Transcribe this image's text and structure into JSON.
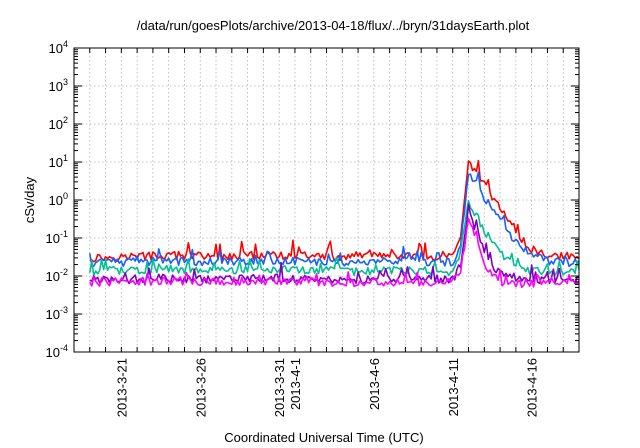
{
  "chart_data": {
    "type": "line",
    "title": "/data/run/goesPlots/archive/2013-04-18/flux/../bryn/31daysEarth.plot",
    "xlabel": "Coordinated Universal Time (UTC)",
    "ylabel": "cSv/day",
    "yscale": "log",
    "ylim": [
      0.0001,
      10000
    ],
    "xlim": [
      "2013-03-18",
      "2013-04-19"
    ],
    "grid": true,
    "legend": "none",
    "yticks": [
      {
        "value": 0.0001,
        "base": "10",
        "exp": "-4"
      },
      {
        "value": 0.001,
        "base": "10",
        "exp": "-3"
      },
      {
        "value": 0.01,
        "base": "10",
        "exp": "-2"
      },
      {
        "value": 0.1,
        "base": "10",
        "exp": "-1"
      },
      {
        "value": 1,
        "base": "10",
        "exp": "0"
      },
      {
        "value": 10,
        "base": "10",
        "exp": "1"
      },
      {
        "value": 100,
        "base": "10",
        "exp": "2"
      },
      {
        "value": 1000,
        "base": "10",
        "exp": "3"
      },
      {
        "value": 10000,
        "base": "10",
        "exp": "4"
      }
    ],
    "xticks": [
      {
        "date": "2013-03-21",
        "label": "2013-3-21"
      },
      {
        "date": "2013-03-26",
        "label": "2013-3-26"
      },
      {
        "date": "2013-03-31",
        "label": "2013-3-31"
      },
      {
        "date": "2013-04-01",
        "label": "2013-4-1"
      },
      {
        "date": "2013-04-06",
        "label": "2013-4-6"
      },
      {
        "date": "2013-04-11",
        "label": "2013-4-11"
      },
      {
        "date": "2013-04-16",
        "label": "2013-4-16"
      }
    ],
    "series": [
      {
        "color": "#ff0000",
        "x": [
          "2013-03-19",
          "2013-03-21",
          "2013-03-24",
          "2013-03-27",
          "2013-03-30",
          "2013-04-02",
          "2013-04-05",
          "2013-04-08",
          "2013-04-11",
          "2013-04-11T12:00",
          "2013-04-12",
          "2013-04-12T12:00",
          "2013-04-13",
          "2013-04-13T12:00",
          "2013-04-14",
          "2013-04-14T12:00",
          "2013-04-15",
          "2013-04-16",
          "2013-04-17",
          "2013-04-18",
          "2013-04-19"
        ],
        "y": [
          0.03,
          0.032,
          0.035,
          0.033,
          0.036,
          0.033,
          0.032,
          0.034,
          0.03,
          0.1,
          8.5,
          6.0,
          2.5,
          1.2,
          0.6,
          0.35,
          0.15,
          0.05,
          0.035,
          0.032,
          0.03
        ]
      },
      {
        "color": "#1560ff",
        "x": [
          "2013-03-19",
          "2013-03-21",
          "2013-03-24",
          "2013-03-27",
          "2013-03-30",
          "2013-04-02",
          "2013-04-05",
          "2013-04-08",
          "2013-04-11",
          "2013-04-11T12:00",
          "2013-04-12",
          "2013-04-12T12:00",
          "2013-04-13",
          "2013-04-13T12:00",
          "2013-04-14",
          "2013-04-14T12:00",
          "2013-04-15",
          "2013-04-16",
          "2013-04-17",
          "2013-04-18",
          "2013-04-19"
        ],
        "y": [
          0.022,
          0.023,
          0.025,
          0.024,
          0.026,
          0.024,
          0.023,
          0.025,
          0.022,
          0.06,
          5.0,
          3.0,
          1.2,
          0.6,
          0.3,
          0.15,
          0.08,
          0.035,
          0.025,
          0.023,
          0.022
        ]
      },
      {
        "color": "#00c090",
        "x": [
          "2013-03-19",
          "2013-03-21",
          "2013-03-24",
          "2013-03-27",
          "2013-03-30",
          "2013-04-02",
          "2013-04-05",
          "2013-04-08",
          "2013-04-11",
          "2013-04-11T12:00",
          "2013-04-12",
          "2013-04-12T12:00",
          "2013-04-13",
          "2013-04-13T12:00",
          "2013-04-14",
          "2013-04-14T12:00",
          "2013-04-15",
          "2013-04-16",
          "2013-04-17",
          "2013-04-18",
          "2013-04-19"
        ],
        "y": [
          0.013,
          0.014,
          0.015,
          0.014,
          0.015,
          0.014,
          0.013,
          0.014,
          0.013,
          0.03,
          1.0,
          0.4,
          0.15,
          0.08,
          0.04,
          0.025,
          0.018,
          0.014,
          0.013,
          0.013,
          0.012
        ]
      },
      {
        "color": "#8000c0",
        "x": [
          "2013-03-19",
          "2013-03-21",
          "2013-03-24",
          "2013-03-27",
          "2013-03-30",
          "2013-04-02",
          "2013-04-05",
          "2013-04-08",
          "2013-04-11",
          "2013-04-11T12:00",
          "2013-04-12",
          "2013-04-12T12:00",
          "2013-04-13",
          "2013-04-13T12:00",
          "2013-04-14",
          "2013-04-14T12:00",
          "2013-04-15",
          "2013-04-16",
          "2013-04-17",
          "2013-04-18",
          "2013-04-19"
        ],
        "y": [
          0.008,
          0.008,
          0.009,
          0.008,
          0.009,
          0.008,
          0.008,
          0.009,
          0.008,
          0.02,
          0.5,
          0.15,
          0.05,
          0.02,
          0.012,
          0.01,
          0.009,
          0.008,
          0.008,
          0.008,
          0.008
        ]
      },
      {
        "color": "#ff00ff",
        "x": [
          "2013-03-19",
          "2013-03-21",
          "2013-03-24",
          "2013-03-27",
          "2013-03-30",
          "2013-04-02",
          "2013-04-05",
          "2013-04-08",
          "2013-04-11",
          "2013-04-11T12:00",
          "2013-04-12",
          "2013-04-12T12:00",
          "2013-04-13",
          "2013-04-13T12:00",
          "2013-04-14",
          "2013-04-14T12:00",
          "2013-04-15",
          "2013-04-16",
          "2013-04-17",
          "2013-04-18",
          "2013-04-19"
        ],
        "y": [
          0.007,
          0.007,
          0.0075,
          0.007,
          0.0075,
          0.007,
          0.0068,
          0.0072,
          0.007,
          0.015,
          0.3,
          0.08,
          0.02,
          0.01,
          0.007,
          0.006,
          0.006,
          0.0065,
          0.007,
          0.007,
          0.0065
        ]
      }
    ]
  }
}
